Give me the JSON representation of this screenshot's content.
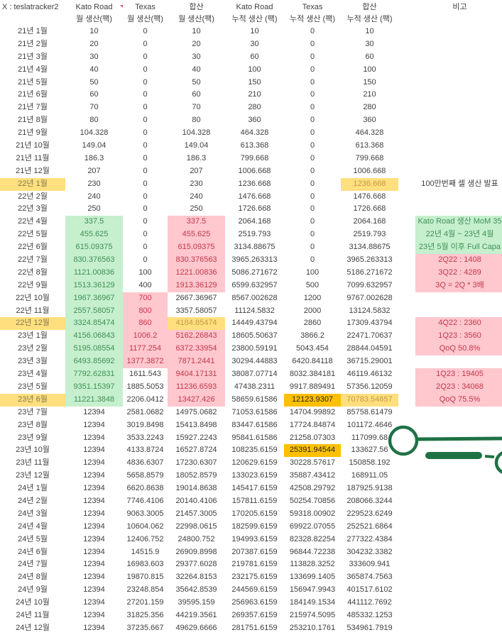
{
  "app": {
    "type": "spreadsheet-screenshot"
  },
  "colors": {
    "text": "#3f3f3f",
    "green_bg": "#C6EFCE",
    "green_text": "#3F9155",
    "pink_bg": "#FFC7CE",
    "pink_text": "#C0394B",
    "yellow_bg": "#FFDF7E",
    "yellow_text": "#C29A46",
    "yellow_month_text": "#81784F",
    "orange_bg": "#FFC000",
    "annotation_green": "#1F7245",
    "comment_marker": "#D5566D"
  },
  "sheet": {
    "corner_label": "X : teslatracker2",
    "header_groups": [
      "Kato Road",
      "Texas",
      "합산",
      "Kato Road",
      "Texas",
      "합산",
      "비고"
    ],
    "header_subs": [
      "월 생산(팩)",
      "월 생산(팩)",
      "월 생산(팩)",
      "누적 생산 (팩)",
      "누적 생산 (팩)",
      "누적 생산 (팩)",
      ""
    ],
    "rows": [
      {
        "m": "21년 1월",
        "ms": "",
        "c": [
          "10",
          "0",
          "10",
          "10",
          "0",
          "10"
        ],
        "s": [
          "",
          "",
          "",
          "",
          "",
          ""
        ],
        "n": "",
        "nsy": ""
      },
      {
        "m": "21년 2월",
        "ms": "",
        "c": [
          "20",
          "0",
          "20",
          "30",
          "0",
          "30"
        ],
        "s": [
          "",
          "",
          "",
          "",
          "",
          ""
        ],
        "n": "",
        "nsy": ""
      },
      {
        "m": "21년 3월",
        "ms": "",
        "c": [
          "30",
          "0",
          "30",
          "60",
          "0",
          "60"
        ],
        "s": [
          "",
          "",
          "",
          "",
          "",
          ""
        ],
        "n": "",
        "nsy": ""
      },
      {
        "m": "21년 4월",
        "ms": "",
        "c": [
          "40",
          "0",
          "40",
          "100",
          "0",
          "100"
        ],
        "s": [
          "",
          "",
          "",
          "",
          "",
          ""
        ],
        "n": "",
        "nsy": ""
      },
      {
        "m": "21년 5월",
        "ms": "",
        "c": [
          "50",
          "0",
          "50",
          "150",
          "0",
          "150"
        ],
        "s": [
          "",
          "",
          "",
          "",
          "",
          ""
        ],
        "n": "",
        "nsy": ""
      },
      {
        "m": "21년 6월",
        "ms": "",
        "c": [
          "60",
          "0",
          "60",
          "210",
          "0",
          "210"
        ],
        "s": [
          "",
          "",
          "",
          "",
          "",
          ""
        ],
        "n": "",
        "nsy": ""
      },
      {
        "m": "21년 7월",
        "ms": "",
        "c": [
          "70",
          "0",
          "70",
          "280",
          "0",
          "280"
        ],
        "s": [
          "",
          "",
          "",
          "",
          "",
          ""
        ],
        "n": "",
        "nsy": ""
      },
      {
        "m": "21년 8월",
        "ms": "",
        "c": [
          "80",
          "0",
          "80",
          "360",
          "0",
          "360"
        ],
        "s": [
          "",
          "",
          "",
          "",
          "",
          ""
        ],
        "n": "",
        "nsy": ""
      },
      {
        "m": "21년 9월",
        "ms": "",
        "c": [
          "104.328",
          "0",
          "104.328",
          "464.328",
          "0",
          "464.328"
        ],
        "s": [
          "",
          "",
          "",
          "",
          "",
          ""
        ],
        "n": "",
        "nsy": ""
      },
      {
        "m": "21년 10월",
        "ms": "",
        "c": [
          "149.04",
          "0",
          "149.04",
          "613.368",
          "0",
          "613.368"
        ],
        "s": [
          "",
          "",
          "",
          "",
          "",
          ""
        ],
        "n": "",
        "nsy": ""
      },
      {
        "m": "21년 11월",
        "ms": "",
        "c": [
          "186.3",
          "0",
          "186.3",
          "799.668",
          "0",
          "799.668"
        ],
        "s": [
          "",
          "",
          "",
          "",
          "",
          ""
        ],
        "n": "",
        "nsy": ""
      },
      {
        "m": "21년 12월",
        "ms": "",
        "c": [
          "207",
          "0",
          "207",
          "1006.668",
          "0",
          "1006.668"
        ],
        "s": [
          "",
          "",
          "",
          "",
          "",
          ""
        ],
        "n": "",
        "nsy": ""
      },
      {
        "m": "22년 1월",
        "ms": "y",
        "c": [
          "230",
          "0",
          "230",
          "1236.668",
          "0",
          "1236.668"
        ],
        "s": [
          "",
          "",
          "",
          "",
          "",
          "y"
        ],
        "n": "100만번째 셀 생산 발표",
        "nsy": "n"
      },
      {
        "m": "22년 2월",
        "ms": "",
        "c": [
          "240",
          "0",
          "240",
          "1476.668",
          "0",
          "1476.668"
        ],
        "s": [
          "",
          "",
          "",
          "",
          "",
          ""
        ],
        "n": "",
        "nsy": ""
      },
      {
        "m": "22년 3월",
        "ms": "",
        "c": [
          "250",
          "0",
          "250",
          "1726.668",
          "0",
          "1726.668"
        ],
        "s": [
          "",
          "",
          "",
          "",
          "",
          ""
        ],
        "n": "",
        "nsy": ""
      },
      {
        "m": "22년 4월",
        "ms": "",
        "c": [
          "337.5",
          "0",
          "337.5",
          "2064.168",
          "0",
          "2064.168"
        ],
        "s": [
          "g",
          "",
          "p",
          "",
          "",
          ""
        ],
        "n": "Kato Road 생산 MoM 35",
        "nsy": "g"
      },
      {
        "m": "22년 5월",
        "ms": "",
        "c": [
          "455.625",
          "0",
          "455.625",
          "2519.793",
          "0",
          "2519.793"
        ],
        "s": [
          "g",
          "",
          "p",
          "",
          "",
          ""
        ],
        "n": "22년 4월 ~ 23년 4월",
        "nsy": "g"
      },
      {
        "m": "22년 6월",
        "ms": "",
        "c": [
          "615.09375",
          "0",
          "615.09375",
          "3134.88675",
          "0",
          "3134.88675"
        ],
        "s": [
          "g",
          "",
          "p",
          "",
          "",
          ""
        ],
        "n": "23년 5월 이후 Full Capa",
        "nsy": "g"
      },
      {
        "m": "22년 7월",
        "ms": "",
        "c": [
          "830.376563",
          "0",
          "830.376563",
          "3965.263313",
          "0",
          "3965.263313"
        ],
        "s": [
          "g",
          "",
          "p",
          "",
          "",
          ""
        ],
        "n": "2Q22 : 1408",
        "nsy": "p"
      },
      {
        "m": "22년 8월",
        "ms": "",
        "c": [
          "1121.00836",
          "100",
          "1221.00836",
          "5086.271672",
          "100",
          "5186.271672"
        ],
        "s": [
          "g",
          "",
          "p",
          "",
          "",
          ""
        ],
        "n": "3Q22 : 4289",
        "nsy": "p"
      },
      {
        "m": "22년 9월",
        "ms": "",
        "c": [
          "1513.36129",
          "400",
          "1913.36129",
          "6599.632957",
          "500",
          "7099.632957"
        ],
        "s": [
          "g",
          "",
          "p",
          "",
          "",
          ""
        ],
        "n": "3Q = 2Q * 3배",
        "nsy": "p"
      },
      {
        "m": "22년 10월",
        "ms": "",
        "c": [
          "1967.36967",
          "700",
          "2667.36967",
          "8567.002628",
          "1200",
          "9767.002628"
        ],
        "s": [
          "g",
          "p",
          "",
          "",
          "",
          ""
        ],
        "n": "",
        "nsy": ""
      },
      {
        "m": "22년 11월",
        "ms": "",
        "c": [
          "2557.58057",
          "800",
          "3357.58057",
          "11124.5832",
          "2000",
          "13124.5832"
        ],
        "s": [
          "g",
          "p",
          "",
          "",
          "",
          ""
        ],
        "n": "",
        "nsy": ""
      },
      {
        "m": "22년 12월",
        "ms": "y",
        "c": [
          "3324.85474",
          "860",
          "4184.85474",
          "14449.43794",
          "2860",
          "17309.43794"
        ],
        "s": [
          "g",
          "p",
          "y",
          "",
          "",
          ""
        ],
        "n": "4Q22 : 2360",
        "nsy": "p"
      },
      {
        "m": "23년 1월",
        "ms": "",
        "c": [
          "4156.06843",
          "1006.2",
          "5162.26843",
          "18605.50637",
          "3866.2",
          "22471.70637"
        ],
        "s": [
          "g",
          "p",
          "p",
          "",
          "",
          ""
        ],
        "n": "1Q23 : 3560",
        "nsy": "p"
      },
      {
        "m": "23년 2월",
        "ms": "",
        "c": [
          "5195.08554",
          "1177.254",
          "6372.33954",
          "23800.59191",
          "5043.454",
          "28844.04591"
        ],
        "s": [
          "g",
          "p",
          "p",
          "",
          "",
          ""
        ],
        "n": "QoQ 50.8%",
        "nsy": "p"
      },
      {
        "m": "23년 3월",
        "ms": "",
        "c": [
          "6493.85692",
          "1377.3872",
          "7871.2441",
          "30294.44883",
          "6420.84118",
          "36715.29001"
        ],
        "s": [
          "g",
          "p",
          "p",
          "",
          "",
          ""
        ],
        "n": "",
        "nsy": ""
      },
      {
        "m": "23년 4월",
        "ms": "",
        "c": [
          "7792.62831",
          "1611.543",
          "9404.17131",
          "38087.07714",
          "8032.384181",
          "46119.46132"
        ],
        "s": [
          "g",
          "",
          "p",
          "",
          "",
          ""
        ],
        "n": "1Q23 : 19405",
        "nsy": "p"
      },
      {
        "m": "23년 5월",
        "ms": "",
        "c": [
          "9351.15397",
          "1885.5053",
          "11236.6593",
          "47438.2311",
          "9917.889491",
          "57356.12059"
        ],
        "s": [
          "g",
          "",
          "p",
          "",
          "",
          ""
        ],
        "n": "2Q23 : 34068",
        "nsy": "p"
      },
      {
        "m": "23년 6월",
        "ms": "y",
        "c": [
          "11221.3848",
          "2206.0412",
          "13427.426",
          "58659.61586",
          "12123.9307",
          "70783.54657"
        ],
        "s": [
          "g",
          "",
          "p",
          "",
          "o",
          "y"
        ],
        "n": "QoQ 75.5%",
        "nsy": "p"
      },
      {
        "m": "23년 7월",
        "ms": "",
        "c": [
          "12394",
          "2581.0682",
          "14975.0682",
          "71053.61586",
          "14704.99892",
          "85758.61479"
        ],
        "s": [
          "",
          "",
          "",
          "",
          "",
          ""
        ],
        "n": "",
        "nsy": ""
      },
      {
        "m": "23년 8월",
        "ms": "",
        "c": [
          "12394",
          "3019.8498",
          "15413.8498",
          "83447.61586",
          "17724.84874",
          "101172.4646"
        ],
        "s": [
          "",
          "",
          "",
          "",
          "",
          ""
        ],
        "n": "",
        "nsy": ""
      },
      {
        "m": "23년 9월",
        "ms": "",
        "c": [
          "12394",
          "3533.2243",
          "15927.2243",
          "95841.61586",
          "21258.07303",
          "117099.68"
        ],
        "s": [
          "",
          "",
          "",
          "",
          "",
          ""
        ],
        "n": "",
        "nsy": ""
      },
      {
        "m": "23년 10월",
        "ms": "",
        "c": [
          "12394",
          "4133.8724",
          "16527.8724",
          "108235.6159",
          "25391.94544",
          "133627.56"
        ],
        "s": [
          "",
          "",
          "",
          "",
          "o",
          ""
        ],
        "n": "",
        "nsy": ""
      },
      {
        "m": "23년 11월",
        "ms": "",
        "c": [
          "12394",
          "4836.6307",
          "17230.6307",
          "120629.6159",
          "30228.57617",
          "150858.192"
        ],
        "s": [
          "",
          "",
          "",
          "",
          "",
          ""
        ],
        "n": "",
        "nsy": ""
      },
      {
        "m": "23년 12월",
        "ms": "",
        "c": [
          "12394",
          "5658.8579",
          "18052.8579",
          "133023.6159",
          "35887.43412",
          "168911.05"
        ],
        "s": [
          "",
          "",
          "",
          "",
          "",
          ""
        ],
        "n": "",
        "nsy": ""
      },
      {
        "m": "24년 1월",
        "ms": "",
        "c": [
          "12394",
          "6620.8638",
          "19014.8638",
          "145417.6159",
          "42508.29792",
          "187925.9138"
        ],
        "s": [
          "",
          "",
          "",
          "",
          "",
          ""
        ],
        "n": "",
        "nsy": ""
      },
      {
        "m": "24년 2월",
        "ms": "",
        "c": [
          "12394",
          "7746.4106",
          "20140.4106",
          "157811.6159",
          "50254.70856",
          "208066.3244"
        ],
        "s": [
          "",
          "",
          "",
          "",
          "",
          ""
        ],
        "n": "",
        "nsy": ""
      },
      {
        "m": "24년 3월",
        "ms": "",
        "c": [
          "12394",
          "9063.3005",
          "21457.3005",
          "170205.6159",
          "59318.00902",
          "229523.6249"
        ],
        "s": [
          "",
          "",
          "",
          "",
          "",
          ""
        ],
        "n": "",
        "nsy": ""
      },
      {
        "m": "24년 4월",
        "ms": "",
        "c": [
          "12394",
          "10604.062",
          "22998.0615",
          "182599.6159",
          "69922.07055",
          "252521.6864"
        ],
        "s": [
          "",
          "",
          "",
          "",
          "",
          ""
        ],
        "n": "",
        "nsy": ""
      },
      {
        "m": "24년 5월",
        "ms": "",
        "c": [
          "12394",
          "12406.752",
          "24800.752",
          "194993.6159",
          "82328.82254",
          "277322.4384"
        ],
        "s": [
          "",
          "",
          "",
          "",
          "",
          ""
        ],
        "n": "",
        "nsy": ""
      },
      {
        "m": "24년 6월",
        "ms": "",
        "c": [
          "12394",
          "14515.9",
          "26909.8998",
          "207387.6159",
          "96844.72238",
          "304232.3382"
        ],
        "s": [
          "",
          "",
          "",
          "",
          "",
          ""
        ],
        "n": "",
        "nsy": ""
      },
      {
        "m": "24년 7월",
        "ms": "",
        "c": [
          "12394",
          "16983.603",
          "29377.6028",
          "219781.6159",
          "113828.3252",
          "333609.941"
        ],
        "s": [
          "",
          "",
          "",
          "",
          "",
          ""
        ],
        "n": "",
        "nsy": ""
      },
      {
        "m": "24년 8월",
        "ms": "",
        "c": [
          "12394",
          "19870.815",
          "32264.8153",
          "232175.6159",
          "133699.1405",
          "365874.7563"
        ],
        "s": [
          "",
          "",
          "",
          "",
          "",
          ""
        ],
        "n": "",
        "nsy": ""
      },
      {
        "m": "24년 9월",
        "ms": "",
        "c": [
          "12394",
          "23248.854",
          "35642.8539",
          "244569.6159",
          "156947.9943",
          "401517.6102"
        ],
        "s": [
          "",
          "",
          "",
          "",
          "",
          ""
        ],
        "n": "",
        "nsy": ""
      },
      {
        "m": "24년 10월",
        "ms": "",
        "c": [
          "12394",
          "27201.159",
          "39595.159",
          "256963.6159",
          "184149.1534",
          "441112.7692"
        ],
        "s": [
          "",
          "",
          "",
          "",
          "",
          ""
        ],
        "n": "",
        "nsy": ""
      },
      {
        "m": "24년 11월",
        "ms": "",
        "c": [
          "12394",
          "31825.356",
          "44219.3561",
          "269357.6159",
          "215974.5095",
          "485332.1253"
        ],
        "s": [
          "",
          "",
          "",
          "",
          "",
          ""
        ],
        "n": "",
        "nsy": ""
      },
      {
        "m": "24년 12월",
        "ms": "",
        "c": [
          "12394",
          "37235.667",
          "49629.6666",
          "281751.6159",
          "253210.1761",
          "534961.7919"
        ],
        "s": [
          "",
          "",
          "",
          "",
          "",
          ""
        ],
        "n": "",
        "nsy": ""
      }
    ]
  },
  "annotation": {
    "shapes": [
      "ring",
      "long-line",
      "capsule",
      "dash",
      "edge-ring"
    ],
    "color": "#1F7245"
  }
}
